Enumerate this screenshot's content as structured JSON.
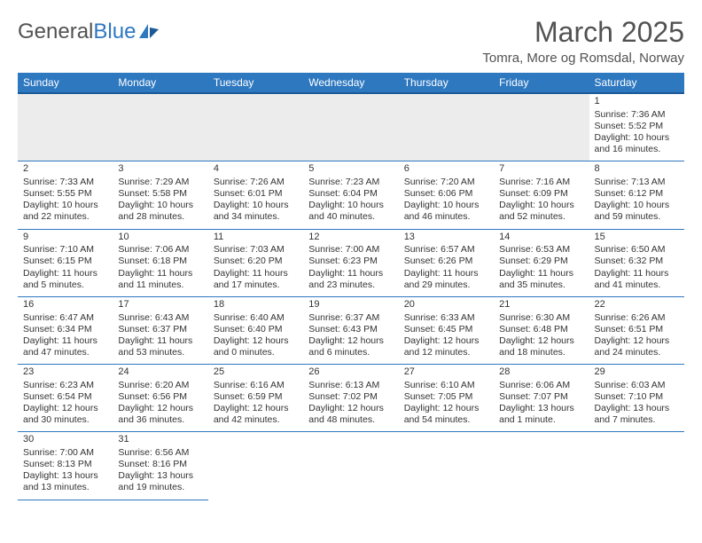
{
  "logo": {
    "part1": "General",
    "part2": "Blue"
  },
  "title": "March 2025",
  "location": "Tomra, More og Romsdal, Norway",
  "colors": {
    "header_bg": "#2e78c0",
    "header_border": "#1b5a96"
  },
  "day_headers": [
    "Sunday",
    "Monday",
    "Tuesday",
    "Wednesday",
    "Thursday",
    "Friday",
    "Saturday"
  ],
  "weeks": [
    [
      null,
      null,
      null,
      null,
      null,
      null,
      {
        "n": "1",
        "sr": "Sunrise: 7:36 AM",
        "ss": "Sunset: 5:52 PM",
        "dl": "Daylight: 10 hours and 16 minutes."
      }
    ],
    [
      {
        "n": "2",
        "sr": "Sunrise: 7:33 AM",
        "ss": "Sunset: 5:55 PM",
        "dl": "Daylight: 10 hours and 22 minutes."
      },
      {
        "n": "3",
        "sr": "Sunrise: 7:29 AM",
        "ss": "Sunset: 5:58 PM",
        "dl": "Daylight: 10 hours and 28 minutes."
      },
      {
        "n": "4",
        "sr": "Sunrise: 7:26 AM",
        "ss": "Sunset: 6:01 PM",
        "dl": "Daylight: 10 hours and 34 minutes."
      },
      {
        "n": "5",
        "sr": "Sunrise: 7:23 AM",
        "ss": "Sunset: 6:04 PM",
        "dl": "Daylight: 10 hours and 40 minutes."
      },
      {
        "n": "6",
        "sr": "Sunrise: 7:20 AM",
        "ss": "Sunset: 6:06 PM",
        "dl": "Daylight: 10 hours and 46 minutes."
      },
      {
        "n": "7",
        "sr": "Sunrise: 7:16 AM",
        "ss": "Sunset: 6:09 PM",
        "dl": "Daylight: 10 hours and 52 minutes."
      },
      {
        "n": "8",
        "sr": "Sunrise: 7:13 AM",
        "ss": "Sunset: 6:12 PM",
        "dl": "Daylight: 10 hours and 59 minutes."
      }
    ],
    [
      {
        "n": "9",
        "sr": "Sunrise: 7:10 AM",
        "ss": "Sunset: 6:15 PM",
        "dl": "Daylight: 11 hours and 5 minutes."
      },
      {
        "n": "10",
        "sr": "Sunrise: 7:06 AM",
        "ss": "Sunset: 6:18 PM",
        "dl": "Daylight: 11 hours and 11 minutes."
      },
      {
        "n": "11",
        "sr": "Sunrise: 7:03 AM",
        "ss": "Sunset: 6:20 PM",
        "dl": "Daylight: 11 hours and 17 minutes."
      },
      {
        "n": "12",
        "sr": "Sunrise: 7:00 AM",
        "ss": "Sunset: 6:23 PM",
        "dl": "Daylight: 11 hours and 23 minutes."
      },
      {
        "n": "13",
        "sr": "Sunrise: 6:57 AM",
        "ss": "Sunset: 6:26 PM",
        "dl": "Daylight: 11 hours and 29 minutes."
      },
      {
        "n": "14",
        "sr": "Sunrise: 6:53 AM",
        "ss": "Sunset: 6:29 PM",
        "dl": "Daylight: 11 hours and 35 minutes."
      },
      {
        "n": "15",
        "sr": "Sunrise: 6:50 AM",
        "ss": "Sunset: 6:32 PM",
        "dl": "Daylight: 11 hours and 41 minutes."
      }
    ],
    [
      {
        "n": "16",
        "sr": "Sunrise: 6:47 AM",
        "ss": "Sunset: 6:34 PM",
        "dl": "Daylight: 11 hours and 47 minutes."
      },
      {
        "n": "17",
        "sr": "Sunrise: 6:43 AM",
        "ss": "Sunset: 6:37 PM",
        "dl": "Daylight: 11 hours and 53 minutes."
      },
      {
        "n": "18",
        "sr": "Sunrise: 6:40 AM",
        "ss": "Sunset: 6:40 PM",
        "dl": "Daylight: 12 hours and 0 minutes."
      },
      {
        "n": "19",
        "sr": "Sunrise: 6:37 AM",
        "ss": "Sunset: 6:43 PM",
        "dl": "Daylight: 12 hours and 6 minutes."
      },
      {
        "n": "20",
        "sr": "Sunrise: 6:33 AM",
        "ss": "Sunset: 6:45 PM",
        "dl": "Daylight: 12 hours and 12 minutes."
      },
      {
        "n": "21",
        "sr": "Sunrise: 6:30 AM",
        "ss": "Sunset: 6:48 PM",
        "dl": "Daylight: 12 hours and 18 minutes."
      },
      {
        "n": "22",
        "sr": "Sunrise: 6:26 AM",
        "ss": "Sunset: 6:51 PM",
        "dl": "Daylight: 12 hours and 24 minutes."
      }
    ],
    [
      {
        "n": "23",
        "sr": "Sunrise: 6:23 AM",
        "ss": "Sunset: 6:54 PM",
        "dl": "Daylight: 12 hours and 30 minutes."
      },
      {
        "n": "24",
        "sr": "Sunrise: 6:20 AM",
        "ss": "Sunset: 6:56 PM",
        "dl": "Daylight: 12 hours and 36 minutes."
      },
      {
        "n": "25",
        "sr": "Sunrise: 6:16 AM",
        "ss": "Sunset: 6:59 PM",
        "dl": "Daylight: 12 hours and 42 minutes."
      },
      {
        "n": "26",
        "sr": "Sunrise: 6:13 AM",
        "ss": "Sunset: 7:02 PM",
        "dl": "Daylight: 12 hours and 48 minutes."
      },
      {
        "n": "27",
        "sr": "Sunrise: 6:10 AM",
        "ss": "Sunset: 7:05 PM",
        "dl": "Daylight: 12 hours and 54 minutes."
      },
      {
        "n": "28",
        "sr": "Sunrise: 6:06 AM",
        "ss": "Sunset: 7:07 PM",
        "dl": "Daylight: 13 hours and 1 minute."
      },
      {
        "n": "29",
        "sr": "Sunrise: 6:03 AM",
        "ss": "Sunset: 7:10 PM",
        "dl": "Daylight: 13 hours and 7 minutes."
      }
    ],
    [
      {
        "n": "30",
        "sr": "Sunrise: 7:00 AM",
        "ss": "Sunset: 8:13 PM",
        "dl": "Daylight: 13 hours and 13 minutes."
      },
      {
        "n": "31",
        "sr": "Sunrise: 6:56 AM",
        "ss": "Sunset: 8:16 PM",
        "dl": "Daylight: 13 hours and 19 minutes."
      },
      null,
      null,
      null,
      null,
      null
    ]
  ]
}
